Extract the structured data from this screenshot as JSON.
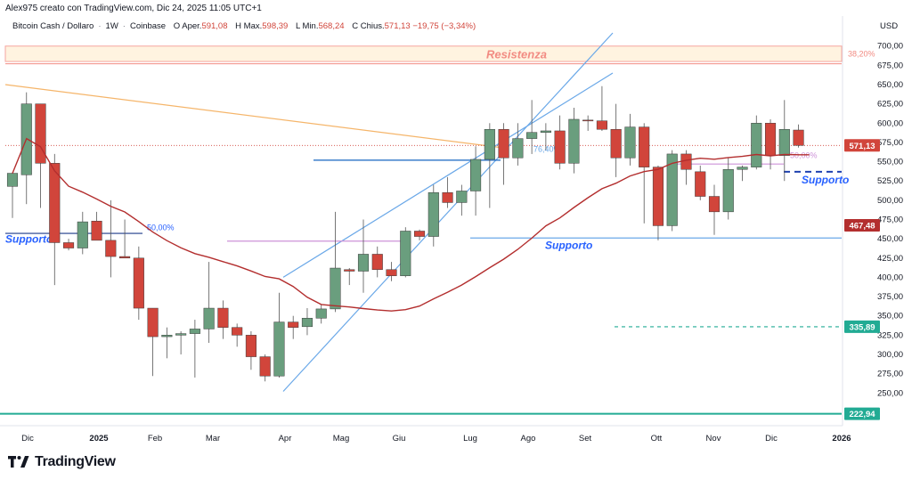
{
  "header": {
    "attribution": "Alex975 creato con TradingView.com, Dic 24, 2025 11:05 UTC+1"
  },
  "symbol": {
    "name": "Bitcoin Cash / Dollaro",
    "interval": "1W",
    "exchange": "Coinbase",
    "open_label": "O",
    "open_prefix": "Aper.",
    "open": "591,08",
    "high_label": "H",
    "high_prefix": "Max.",
    "high": "598,39",
    "low_label": "L",
    "low_prefix": "Min.",
    "low": "568,24",
    "close_label": "C",
    "close_prefix": "Chius.",
    "close": "571,13",
    "change": "−19,75 (−3,34%)"
  },
  "axis": {
    "currency": "USD"
  },
  "colors": {
    "up": "#6a9e7e",
    "down": "#d1453b",
    "ma": "#b32e2e",
    "channel": "#6aa8e8",
    "fib_line": "#f5b56a",
    "support_blue": "#2962ff",
    "purple": "#ce93d8",
    "teal": "#22ab94"
  },
  "chart_data": {
    "type": "candlestick",
    "interval": "1W",
    "y_axis": {
      "min": 222.94,
      "max": 700,
      "ticks": [
        250,
        275,
        300,
        325,
        350,
        375,
        400,
        425,
        450,
        475,
        500,
        525,
        550,
        575,
        600,
        625,
        650,
        675,
        700
      ]
    },
    "x_ticks": [
      "Dic",
      "2025",
      "Feb",
      "Mar",
      "Apr",
      "Mag",
      "Giu",
      "Lug",
      "Ago",
      "Set",
      "Ott",
      "Nov",
      "Dic",
      "2026"
    ],
    "candles": [
      {
        "o": 518,
        "h": 535,
        "l": 477,
        "c": 535
      },
      {
        "o": 533,
        "h": 640,
        "l": 495,
        "c": 625
      },
      {
        "o": 625,
        "h": 625,
        "l": 490,
        "c": 548
      },
      {
        "o": 548,
        "h": 560,
        "l": 390,
        "c": 445
      },
      {
        "o": 445,
        "h": 450,
        "l": 435,
        "c": 438
      },
      {
        "o": 438,
        "h": 485,
        "l": 430,
        "c": 472
      },
      {
        "o": 473,
        "h": 485,
        "l": 450,
        "c": 448
      },
      {
        "o": 448,
        "h": 500,
        "l": 400,
        "c": 427
      },
      {
        "o": 427,
        "h": 475,
        "l": 425,
        "c": 425
      },
      {
        "o": 425,
        "h": 440,
        "l": 345,
        "c": 360
      },
      {
        "o": 360,
        "h": 360,
        "l": 272,
        "c": 323
      },
      {
        "o": 323,
        "h": 335,
        "l": 295,
        "c": 325
      },
      {
        "o": 325,
        "h": 330,
        "l": 300,
        "c": 327
      },
      {
        "o": 327,
        "h": 345,
        "l": 270,
        "c": 333
      },
      {
        "o": 333,
        "h": 420,
        "l": 315,
        "c": 360
      },
      {
        "o": 360,
        "h": 370,
        "l": 320,
        "c": 335
      },
      {
        "o": 335,
        "h": 340,
        "l": 310,
        "c": 325
      },
      {
        "o": 325,
        "h": 330,
        "l": 280,
        "c": 297
      },
      {
        "o": 297,
        "h": 300,
        "l": 265,
        "c": 272
      },
      {
        "o": 272,
        "h": 380,
        "l": 270,
        "c": 342
      },
      {
        "o": 342,
        "h": 350,
        "l": 320,
        "c": 335
      },
      {
        "o": 336,
        "h": 360,
        "l": 325,
        "c": 347
      },
      {
        "o": 347,
        "h": 365,
        "l": 340,
        "c": 359
      },
      {
        "o": 359,
        "h": 485,
        "l": 355,
        "c": 412
      },
      {
        "o": 410,
        "h": 412,
        "l": 390,
        "c": 408
      },
      {
        "o": 408,
        "h": 475,
        "l": 380,
        "c": 430
      },
      {
        "o": 430,
        "h": 440,
        "l": 400,
        "c": 410
      },
      {
        "o": 410,
        "h": 420,
        "l": 395,
        "c": 402
      },
      {
        "o": 402,
        "h": 465,
        "l": 400,
        "c": 460
      },
      {
        "o": 460,
        "h": 462,
        "l": 448,
        "c": 453
      },
      {
        "o": 453,
        "h": 520,
        "l": 440,
        "c": 510
      },
      {
        "o": 510,
        "h": 530,
        "l": 490,
        "c": 497
      },
      {
        "o": 497,
        "h": 520,
        "l": 480,
        "c": 512
      },
      {
        "o": 512,
        "h": 570,
        "l": 480,
        "c": 553
      },
      {
        "o": 553,
        "h": 600,
        "l": 490,
        "c": 592
      },
      {
        "o": 592,
        "h": 600,
        "l": 520,
        "c": 555
      },
      {
        "o": 555,
        "h": 600,
        "l": 545,
        "c": 580
      },
      {
        "o": 580,
        "h": 630,
        "l": 560,
        "c": 588
      },
      {
        "o": 588,
        "h": 600,
        "l": 565,
        "c": 590
      },
      {
        "o": 590,
        "h": 610,
        "l": 540,
        "c": 548
      },
      {
        "o": 548,
        "h": 620,
        "l": 535,
        "c": 605
      },
      {
        "o": 604,
        "h": 610,
        "l": 590,
        "c": 603
      },
      {
        "o": 603,
        "h": 648,
        "l": 590,
        "c": 592
      },
      {
        "o": 592,
        "h": 625,
        "l": 530,
        "c": 555
      },
      {
        "o": 555,
        "h": 612,
        "l": 545,
        "c": 595
      },
      {
        "o": 595,
        "h": 600,
        "l": 470,
        "c": 543
      },
      {
        "o": 543,
        "h": 545,
        "l": 448,
        "c": 467
      },
      {
        "o": 467,
        "h": 565,
        "l": 460,
        "c": 560
      },
      {
        "o": 560,
        "h": 565,
        "l": 520,
        "c": 540
      },
      {
        "o": 537,
        "h": 545,
        "l": 500,
        "c": 505
      },
      {
        "o": 505,
        "h": 520,
        "l": 455,
        "c": 485
      },
      {
        "o": 485,
        "h": 555,
        "l": 475,
        "c": 540
      },
      {
        "o": 540,
        "h": 545,
        "l": 525,
        "c": 543
      },
      {
        "o": 543,
        "h": 610,
        "l": 540,
        "c": 600
      },
      {
        "o": 600,
        "h": 605,
        "l": 540,
        "c": 558
      },
      {
        "o": 558,
        "h": 630,
        "l": 525,
        "c": 592
      },
      {
        "o": 591.08,
        "h": 598.39,
        "l": 568.24,
        "c": 571.13
      }
    ],
    "price_labels": [
      {
        "value": "571,13",
        "kind": "last"
      },
      {
        "value": "467,48",
        "kind": "ma"
      },
      {
        "value": "335,89",
        "kind": "teal"
      },
      {
        "value": "222,94",
        "kind": "teal"
      }
    ],
    "annotations": [
      {
        "text": "Resistenza",
        "kind": "zone"
      },
      {
        "text": "38,20%",
        "kind": "fib"
      },
      {
        "text": "Supporto",
        "kind": "support"
      },
      {
        "text": "50,00%",
        "kind": "fib"
      },
      {
        "text": "Supporto",
        "kind": "support"
      },
      {
        "text": "Supporto",
        "kind": "support"
      },
      {
        "text": "76,40%",
        "kind": "fib"
      },
      {
        "text": "50,00%",
        "kind": "fib"
      },
      {
        "text": "50,00%",
        "kind": "fib"
      }
    ]
  },
  "footer": {
    "brand": "TradingView"
  }
}
